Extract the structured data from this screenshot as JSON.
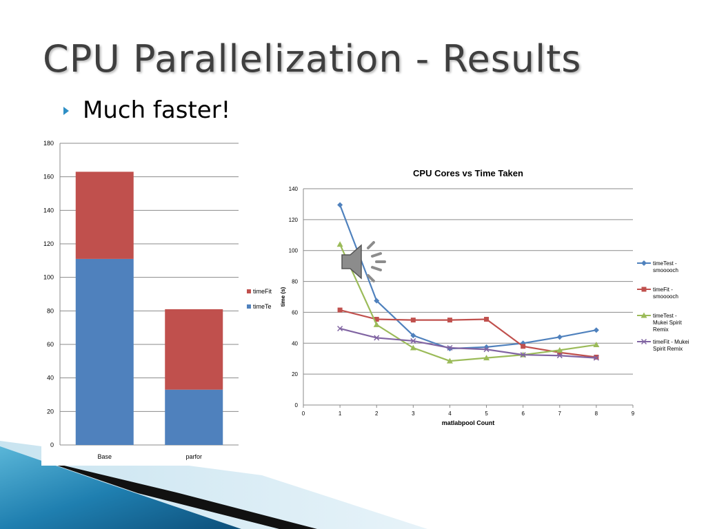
{
  "slide": {
    "title": "CPU Parallelization - Results",
    "bullet": "Much faster!"
  },
  "colors": {
    "title": "#3f3f3f",
    "bullet": "#2e8fc5",
    "blue": "#4f81bd",
    "red": "#c0504d",
    "green": "#9bbb59",
    "purple": "#8064a2"
  },
  "icons": {
    "audio": "speaker-icon",
    "bullet": "triangle-bullet-icon"
  },
  "chart_data": [
    {
      "type": "bar",
      "stacked": true,
      "categories": [
        "Base",
        "parfor"
      ],
      "series": [
        {
          "name": "timeTe",
          "values": [
            111,
            33
          ],
          "color": "#4f81bd"
        },
        {
          "name": "timeFit",
          "values": [
            52,
            48
          ],
          "color": "#c0504d"
        }
      ],
      "ylim": [
        0,
        180
      ],
      "yticks": [
        0,
        20,
        40,
        60,
        80,
        100,
        120,
        140,
        160,
        180
      ],
      "grid": true,
      "legend": "right"
    },
    {
      "type": "line",
      "title": "CPU Cores vs Time Taken",
      "xlabel": "matlabpool Count",
      "ylabel": "time (s)",
      "xlim": [
        0,
        9
      ],
      "ylim": [
        0,
        140
      ],
      "xticks": [
        0,
        1,
        2,
        3,
        4,
        5,
        6,
        7,
        8,
        9
      ],
      "yticks": [
        0,
        20,
        40,
        60,
        80,
        100,
        120,
        140
      ],
      "grid": true,
      "legend": "right",
      "x": [
        1,
        2,
        3,
        4,
        5,
        6,
        7,
        8
      ],
      "series": [
        {
          "name": "timeTest - smooooch",
          "legend_lines": [
            "timeTest -",
            "smooooch"
          ],
          "marker": "diamond",
          "color": "#4f81bd",
          "values": [
            129.5,
            67.5,
            45,
            36.5,
            37.5,
            40,
            44,
            48.5
          ]
        },
        {
          "name": "timeFit - smooooch",
          "legend_lines": [
            "timeFit -",
            "smooooch"
          ],
          "marker": "square",
          "color": "#c0504d",
          "values": [
            61.5,
            55.5,
            55,
            55,
            55.5,
            38,
            34,
            31
          ]
        },
        {
          "name": "timeTest - Mukei Spirit Remix",
          "legend_lines": [
            "timeTest -",
            "Mukei Spirit",
            "Remix"
          ],
          "marker": "triangle",
          "color": "#9bbb59",
          "values": [
            104,
            52,
            37,
            28.5,
            30.5,
            32.5,
            35.5,
            39
          ]
        },
        {
          "name": "timeFit - Mukei Spirit Remix",
          "legend_lines": [
            "timeFit - Mukei",
            "Spirit Remix"
          ],
          "marker": "x",
          "color": "#8064a2",
          "values": [
            49.5,
            43.5,
            41.5,
            37,
            36,
            32.5,
            32,
            30.5
          ]
        }
      ]
    }
  ]
}
